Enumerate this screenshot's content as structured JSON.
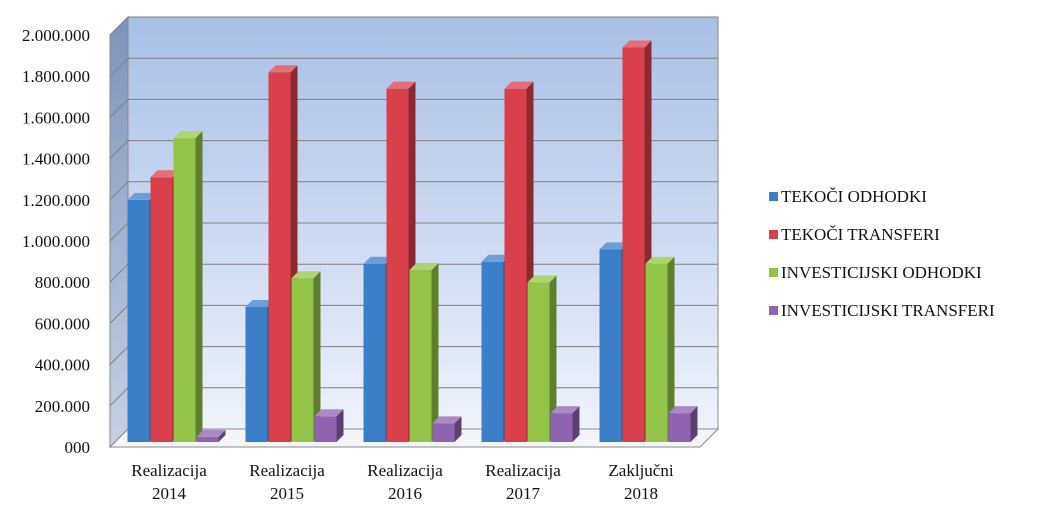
{
  "chart_data": {
    "type": "bar",
    "style": "3d-clustered-column",
    "categories": [
      [
        "Realizacija",
        "2014"
      ],
      [
        "Realizacija",
        "2015"
      ],
      [
        "Realizacija",
        "2016"
      ],
      [
        "Realizacija",
        "2017"
      ],
      [
        "Zaključni",
        "2018"
      ]
    ],
    "series": [
      {
        "name": "TEKOČI ODHODKI",
        "color": "#3A7FC8",
        "values": [
          1180000,
          660000,
          870000,
          880000,
          940000
        ]
      },
      {
        "name": "TEKOČI TRANSFERI",
        "color": "#D9404C",
        "values": [
          1290000,
          1800000,
          1720000,
          1720000,
          1920000
        ]
      },
      {
        "name": "INVESTICIJSKI ODHODKI",
        "color": "#93C447",
        "values": [
          1480000,
          800000,
          840000,
          780000,
          870000
        ]
      },
      {
        "name": "INVESTICIJSKI TRANSFERI",
        "color": "#8E63B0",
        "values": [
          30000,
          130000,
          95000,
          145000,
          145000
        ]
      }
    ],
    "y_ticks": [
      "000",
      "200.000",
      "400.000",
      "600.000",
      "800.000",
      "1.000.000",
      "1.200.000",
      "1.400.000",
      "1.600.000",
      "1.800.000",
      "2.000.000"
    ],
    "ylim": [
      0,
      2000000
    ],
    "grid": true,
    "legend": "right",
    "backwall_gradient": [
      "#A9BFE6",
      "#EEF2FA"
    ]
  }
}
